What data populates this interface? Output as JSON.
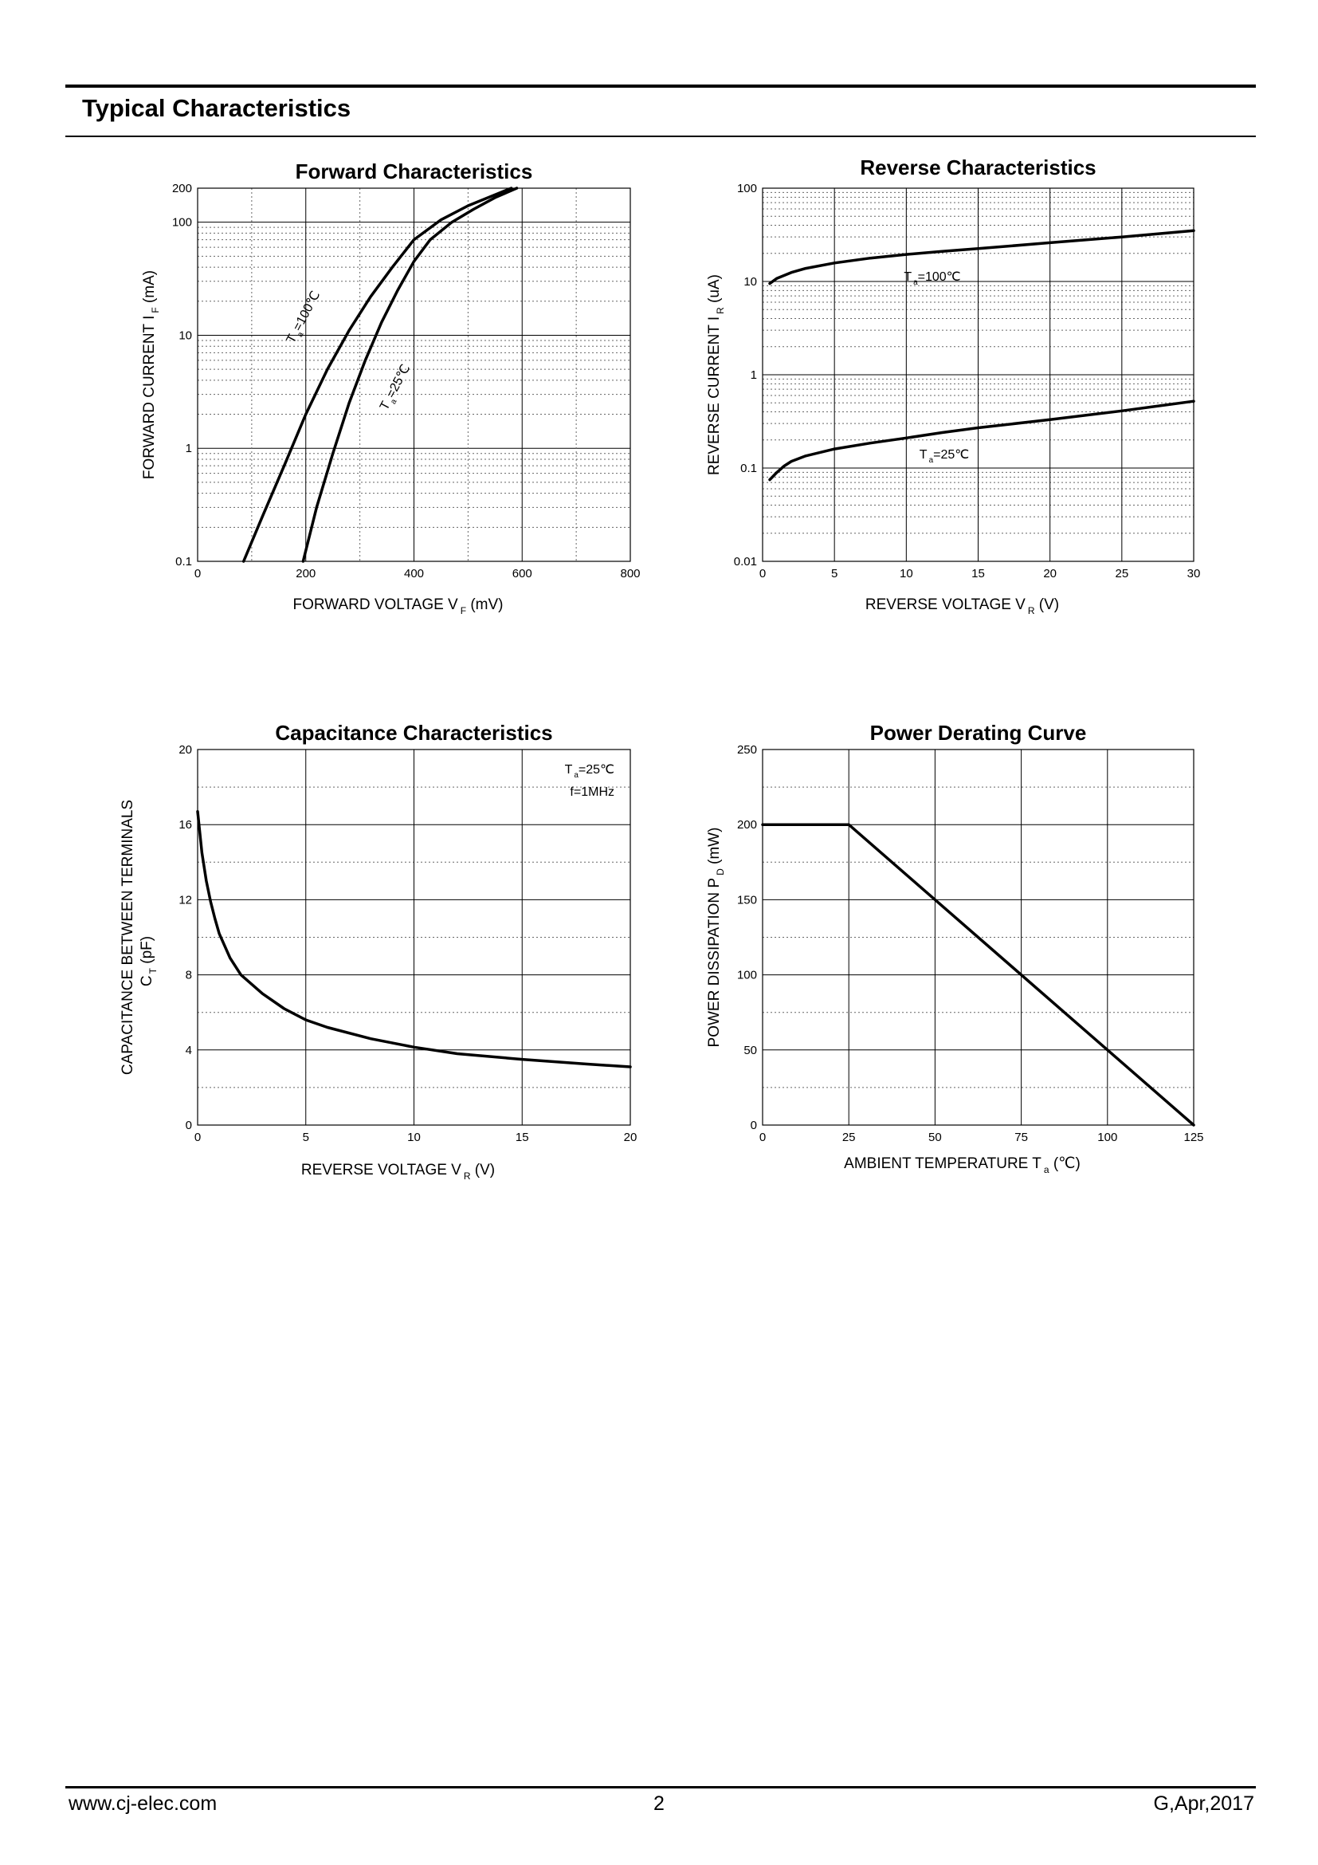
{
  "page": {
    "section_title": "Typical Characteristics",
    "footer_left": "www.cj-elec.com",
    "footer_center": "2",
    "footer_right": "G,Apr,2017"
  },
  "chart_data": [
    {
      "id": "forward",
      "type": "line",
      "title": "Forward Characteristics",
      "xlabel": "FORWARD VOLTAGE",
      "xsym": "V",
      "xsub": "F",
      "xunit": "(mV)",
      "ylabel": "FORWARD CURRENT",
      "ysym": "I",
      "ysub": "F",
      "yunit": "(mA)",
      "xscale": "linear",
      "yscale": "log",
      "xlim": [
        0,
        800
      ],
      "ylim": [
        0.1,
        200
      ],
      "xticks": [
        0,
        200,
        400,
        600,
        800
      ],
      "yticks": [
        0.1,
        1,
        10,
        100,
        200
      ],
      "ytick_labels": [
        "0.1",
        "1",
        "10",
        "100",
        "200"
      ],
      "grid": true,
      "series": [
        {
          "label_main": "T",
          "label_sub": "a",
          "label_rest": "=100℃",
          "x": [
            85,
            120,
            160,
            200,
            240,
            280,
            320,
            360,
            400,
            450,
            500,
            550,
            580
          ],
          "y": [
            0.1,
            0.25,
            0.7,
            2,
            5,
            11,
            22,
            40,
            70,
            105,
            140,
            175,
            200
          ]
        },
        {
          "label_main": "T",
          "label_sub": "a",
          "label_rest": "=25℃",
          "x": [
            195,
            220,
            250,
            280,
            310,
            340,
            370,
            400,
            430,
            470,
            510,
            550,
            590
          ],
          "y": [
            0.1,
            0.3,
            0.9,
            2.5,
            6,
            13,
            25,
            45,
            70,
            100,
            130,
            165,
            200
          ]
        }
      ]
    },
    {
      "id": "reverse",
      "type": "line",
      "title": "Reverse Characteristics",
      "xlabel": "REVERSE VOLTAGE",
      "xsym": "V",
      "xsub": "R",
      "xunit": "(V)",
      "ylabel": "REVERSE CURRENT",
      "ysym": "I",
      "ysub": "R",
      "yunit": "(uA)",
      "xscale": "linear",
      "yscale": "log",
      "xlim": [
        0,
        30
      ],
      "ylim": [
        0.01,
        100
      ],
      "xticks": [
        0,
        5,
        10,
        15,
        20,
        25,
        30
      ],
      "yticks": [
        0.01,
        0.1,
        1,
        10,
        100
      ],
      "ytick_labels": [
        "0.01",
        "0.1",
        "1",
        "10",
        "100"
      ],
      "grid": true,
      "series": [
        {
          "label_main": "T",
          "label_sub": "a",
          "label_rest": "=100℃",
          "x": [
            0.5,
            1,
            2,
            3,
            5,
            7.5,
            10,
            12.5,
            15,
            20,
            25,
            30
          ],
          "y": [
            9.5,
            10.8,
            12.5,
            13.8,
            15.8,
            17.8,
            19.5,
            21,
            22.5,
            26,
            30,
            35
          ]
        },
        {
          "label_main": "T",
          "label_sub": "a",
          "label_rest": "=25℃",
          "x": [
            0.5,
            1,
            1.5,
            2,
            3,
            5,
            7.5,
            10,
            12.5,
            15,
            20,
            25,
            30
          ],
          "y": [
            0.075,
            0.09,
            0.105,
            0.118,
            0.135,
            0.16,
            0.185,
            0.21,
            0.24,
            0.27,
            0.33,
            0.41,
            0.52
          ]
        }
      ]
    },
    {
      "id": "capacitance",
      "type": "line",
      "title": "Capacitance Characteristics",
      "xlabel": "REVERSE VOLTAGE",
      "xsym": "V",
      "xsub": "R",
      "xunit": "(V)",
      "ylabel": "CAPACITANCE BETWEEN TERMINALS",
      "ysym": "C",
      "ysub": "T",
      "yunit": "(pF)",
      "xscale": "linear",
      "yscale": "linear",
      "xlim": [
        0,
        20
      ],
      "ylim": [
        0,
        20
      ],
      "xticks": [
        0,
        5,
        10,
        15,
        20
      ],
      "yticks": [
        0,
        4,
        8,
        12,
        16,
        20
      ],
      "ytick_labels": [
        "0",
        "4",
        "8",
        "12",
        "16",
        "20"
      ],
      "grid": true,
      "note_main": "T",
      "note_sub": "a",
      "note_rest": "=25℃",
      "note2": "f=1MHz",
      "series": [
        {
          "x": [
            0,
            0.2,
            0.4,
            0.6,
            0.8,
            1,
            1.5,
            2,
            3,
            4,
            5,
            6,
            8,
            10,
            12,
            15,
            18,
            20
          ],
          "y": [
            16.7,
            14.5,
            13,
            11.9,
            11,
            10.2,
            8.9,
            8,
            7,
            6.2,
            5.6,
            5.2,
            4.6,
            4.15,
            3.8,
            3.5,
            3.25,
            3.1
          ]
        }
      ]
    },
    {
      "id": "derating",
      "type": "line",
      "title": "Power Derating Curve",
      "xlabel": "AMBIENT TEMPERATURE",
      "xsym": "T",
      "xsub": "a",
      "xunit": "(℃)",
      "ylabel": "POWER DISSIPATION",
      "ysym": "P",
      "ysub": "D",
      "yunit": "(mW)",
      "xscale": "linear",
      "yscale": "linear",
      "xlim": [
        0,
        125
      ],
      "ylim": [
        0,
        250
      ],
      "xticks": [
        0,
        25,
        50,
        75,
        100,
        125
      ],
      "yticks": [
        0,
        50,
        100,
        150,
        200,
        250
      ],
      "ytick_labels": [
        "0",
        "50",
        "100",
        "150",
        "200",
        "250"
      ],
      "grid": true,
      "series": [
        {
          "x": [
            0,
            25,
            125
          ],
          "y": [
            200,
            200,
            0
          ]
        }
      ]
    }
  ]
}
